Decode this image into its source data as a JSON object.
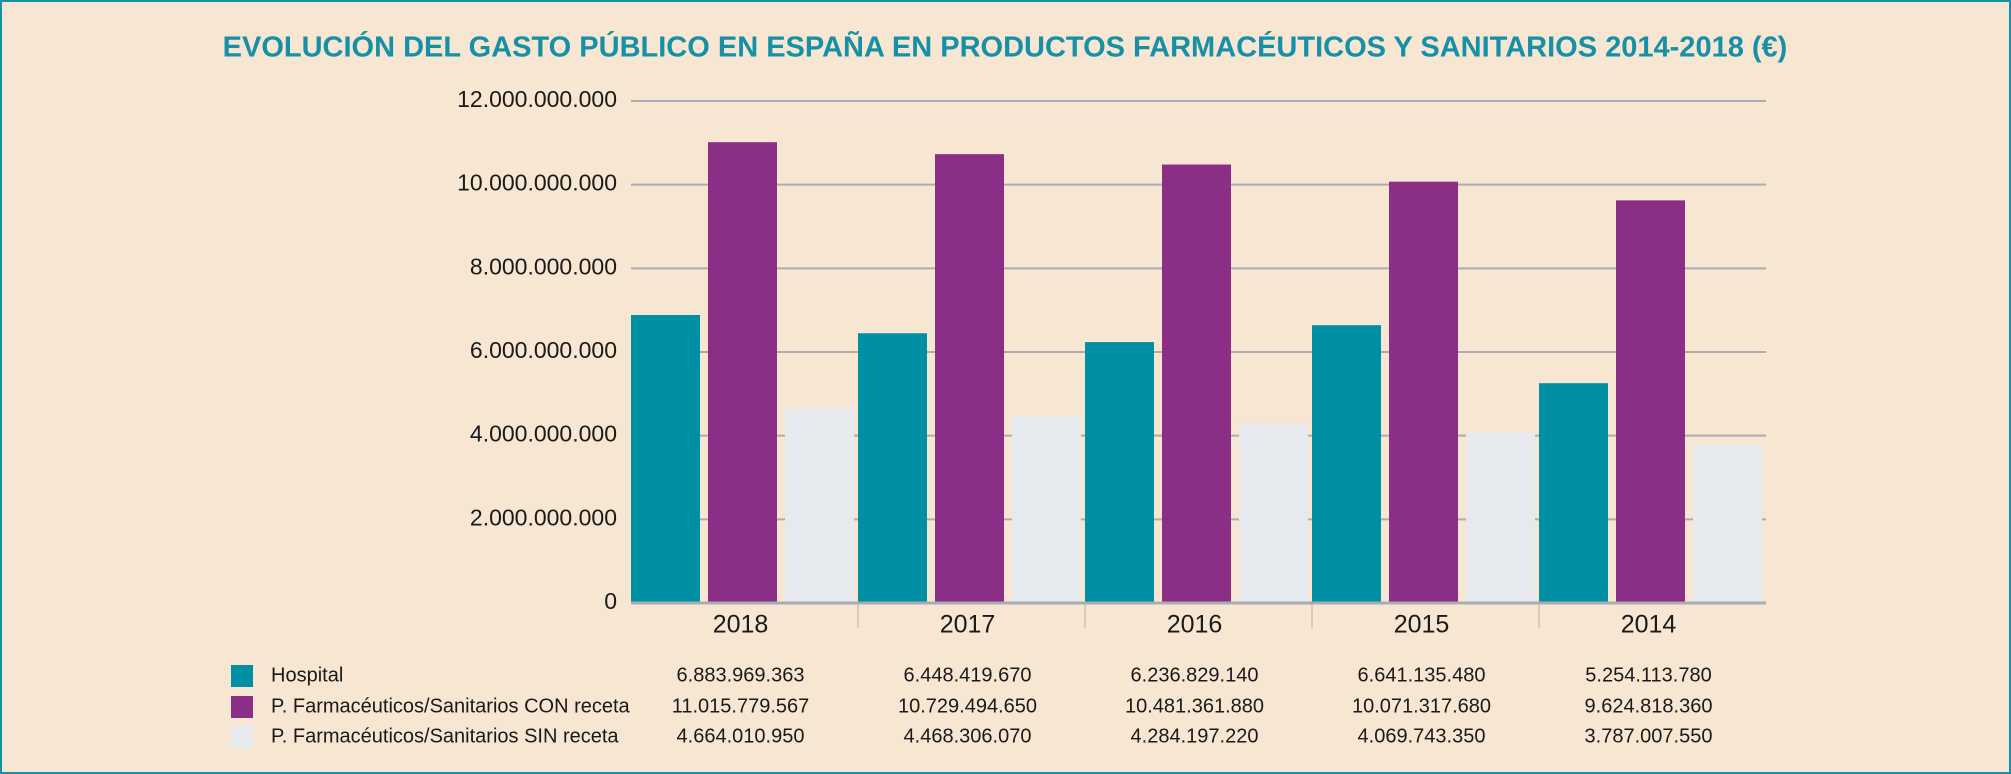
{
  "chart_data": {
    "type": "bar",
    "title": "EVOLUCIÓN DEL GASTO PÚBLICO EN ESPAÑA EN PRODUCTOS FARMACÉUTICOS Y SANITARIOS 2014-2018 (€)",
    "categories": [
      "2018",
      "2017",
      "2016",
      "2015",
      "2014"
    ],
    "series": [
      {
        "name": "Hospital",
        "color": "#0090a3",
        "values": [
          6883969363,
          6448419670,
          6236829140,
          6641135480,
          5254113780
        ],
        "value_labels": [
          "6.883.969.363",
          "6.448.419.670",
          "6.236.829.140",
          "6.641.135.480",
          "5.254.113.780"
        ]
      },
      {
        "name": "P. Farmacéuticos/Sanitarios CON receta",
        "color": "#8b2f86",
        "values": [
          11015779567,
          10729494650,
          10481361880,
          10071317680,
          9624818360
        ],
        "value_labels": [
          "11.015.779.567",
          "10.729.494.650",
          "10.481.361.880",
          "10.071.317.680",
          "9.624.818.360"
        ]
      },
      {
        "name": "P. Farmacéuticos/Sanitarios SIN receta",
        "color": "#e6e9ee",
        "values": [
          4664010950,
          4468306070,
          4284197220,
          4069743350,
          3787007550
        ],
        "value_labels": [
          "4.664.010.950",
          "4.468.306.070",
          "4.284.197.220",
          "4.069.743.350",
          "3.787.007.550"
        ]
      }
    ],
    "ylim": [
      0,
      12000000000
    ],
    "yticks": [
      0,
      {
        "value": 2000000000,
        "label": "2.000.000.000"
      },
      {
        "value": 4000000000,
        "label": "4.000.000.000"
      },
      {
        "value": 6000000000,
        "label": "6.000.000.000"
      },
      {
        "value": 8000000000,
        "label": "8.000.000.000"
      },
      {
        "value": 10000000000,
        "label": "10.000.000.000"
      },
      {
        "value": 12000000000,
        "label": "12.000.000.000"
      }
    ],
    "grid": true
  }
}
